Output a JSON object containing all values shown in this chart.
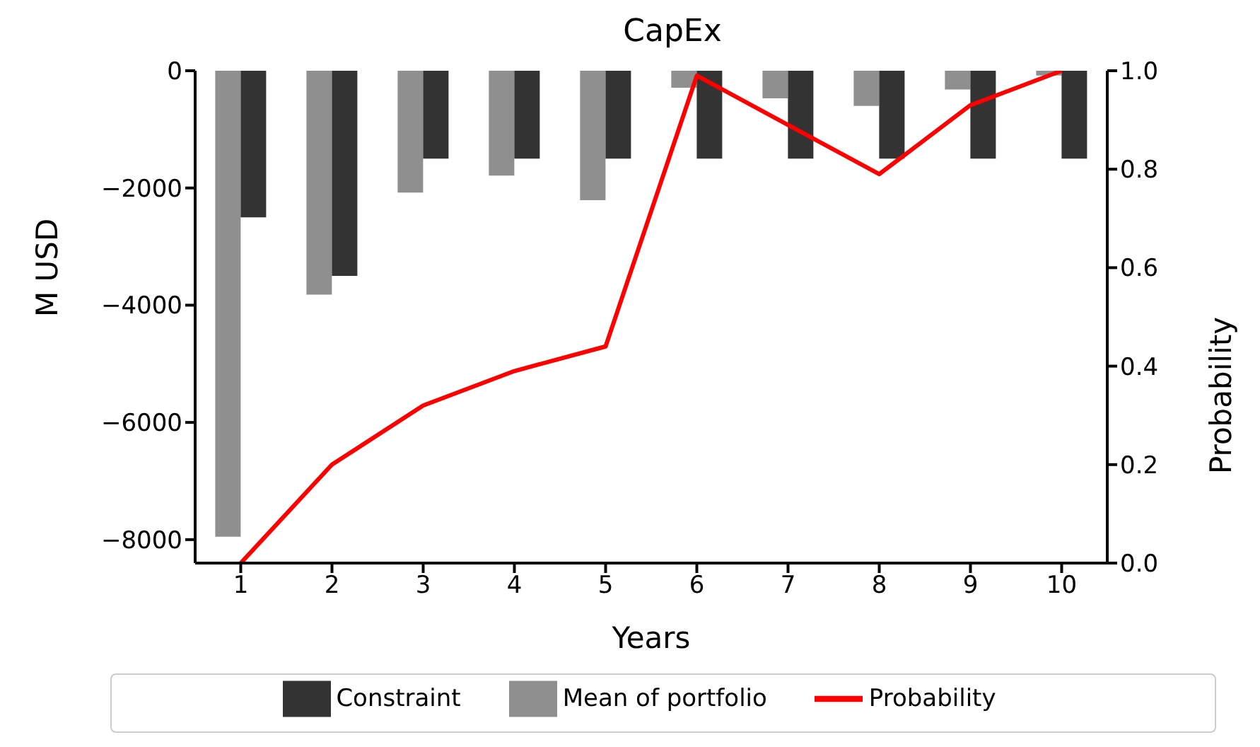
{
  "chart_data": {
    "type": "bar",
    "title": "CapEx",
    "xlabel": "Years",
    "ylabel": "M USD",
    "y2label": "Probability",
    "categories": [
      "1",
      "2",
      "3",
      "4",
      "5",
      "6",
      "7",
      "8",
      "9",
      "10"
    ],
    "series": [
      {
        "name": "Mean of portfolio",
        "color": "#8f8f8f",
        "values": [
          -7950,
          -3820,
          -2080,
          -1790,
          -2210,
          -290,
          -470,
          -600,
          -320,
          -80
        ]
      },
      {
        "name": "Constraint",
        "color": "#333333",
        "values": [
          -2500,
          -3500,
          -1500,
          -1500,
          -1500,
          -1500,
          -1500,
          -1500,
          -1500,
          -1500
        ]
      },
      {
        "name": "Probability",
        "type": "line",
        "axis": "y2",
        "color": "#ff0000",
        "values": [
          0,
          0.2,
          0.32,
          0.39,
          0.44,
          0.99,
          0.89,
          0.79,
          0.93,
          1.0
        ]
      }
    ],
    "ylim": [
      -8400,
      0
    ],
    "yticks": [
      0,
      -2000,
      -4000,
      -6000,
      -8000
    ],
    "y2lim": [
      0,
      1
    ],
    "y2ticks": [
      {
        "value": 0,
        "label": "0.0"
      },
      {
        "value": 0.2,
        "label": "0.2"
      },
      {
        "value": 0.4,
        "label": "0.4"
      },
      {
        "value": 0.6,
        "label": "0.6"
      },
      {
        "value": 0.8,
        "label": "0.8"
      },
      {
        "value": 1,
        "label": "1.0"
      }
    ],
    "grid": false,
    "legend": "bottom",
    "marker": "none",
    "line_style": "solid"
  }
}
